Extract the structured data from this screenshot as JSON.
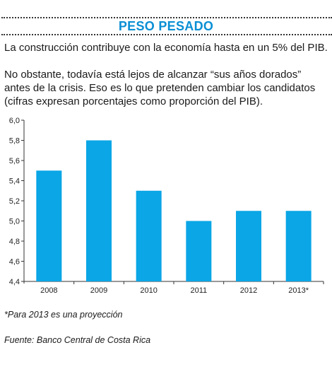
{
  "header": {
    "title": "PESO PESADO"
  },
  "text": {
    "lede": "La construcción contribuye con la economía hasta en un 5% del PIB.",
    "body": "No obstante, todavía está lejos de alcanzar “sus años dorados” antes de la crisis. Eso es lo que pretenden cambiar los candidatos (cifras expresan porcentajes como proporción del PIB)."
  },
  "chart_data": {
    "type": "bar",
    "categories": [
      "2008",
      "2009",
      "2010",
      "2011",
      "2012",
      "2013*"
    ],
    "values": [
      5.5,
      5.8,
      5.3,
      5.0,
      5.1,
      5.1
    ],
    "ylim": [
      4.4,
      6.0
    ],
    "yticks": [
      "4,4",
      "4,6",
      "4,8",
      "5,0",
      "5,2",
      "5,4",
      "5,6",
      "5,8",
      "6,0"
    ],
    "bar_color": "#0aa6e6",
    "grid": false,
    "title": "",
    "xlabel": "",
    "ylabel": ""
  },
  "footer": {
    "note": "*Para 2013 es una proyección",
    "source": "Fuente: Banco Central de Costa Rica"
  }
}
